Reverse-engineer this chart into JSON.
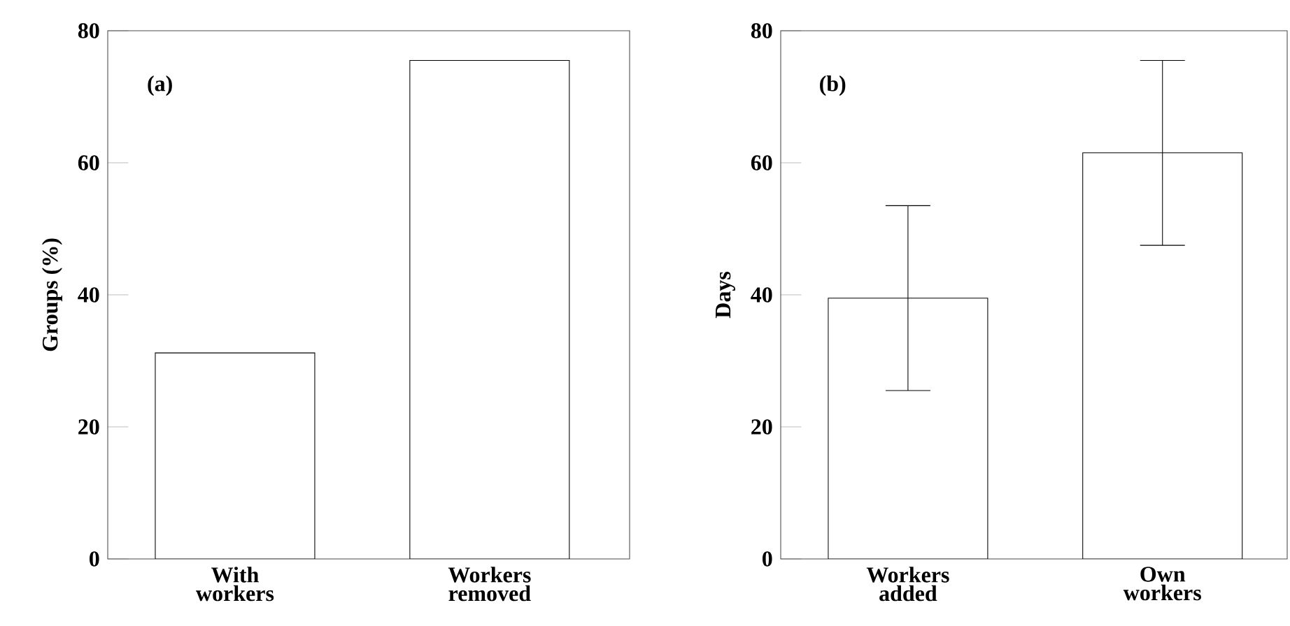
{
  "chart_data": [
    {
      "type": "bar",
      "ylabel": "Groups (%)",
      "categories": [
        "With workers",
        "Workers removed"
      ],
      "values": [
        31.2,
        75.5
      ],
      "color": "#ffffff",
      "ylim": [
        0,
        80
      ],
      "yticks": [
        0,
        20,
        40,
        60,
        80
      ],
      "annotations": [
        "(a)"
      ]
    },
    {
      "type": "bar",
      "ylabel": "Days",
      "categories": [
        "Workers added",
        "Own workers"
      ],
      "values": [
        39.5,
        61.5
      ],
      "errors": [
        14,
        14
      ],
      "color": "#ffffff",
      "ylim": [
        0,
        80
      ],
      "yticks": [
        0,
        20,
        40,
        60,
        80
      ],
      "annotations": [
        "(b)"
      ]
    }
  ]
}
